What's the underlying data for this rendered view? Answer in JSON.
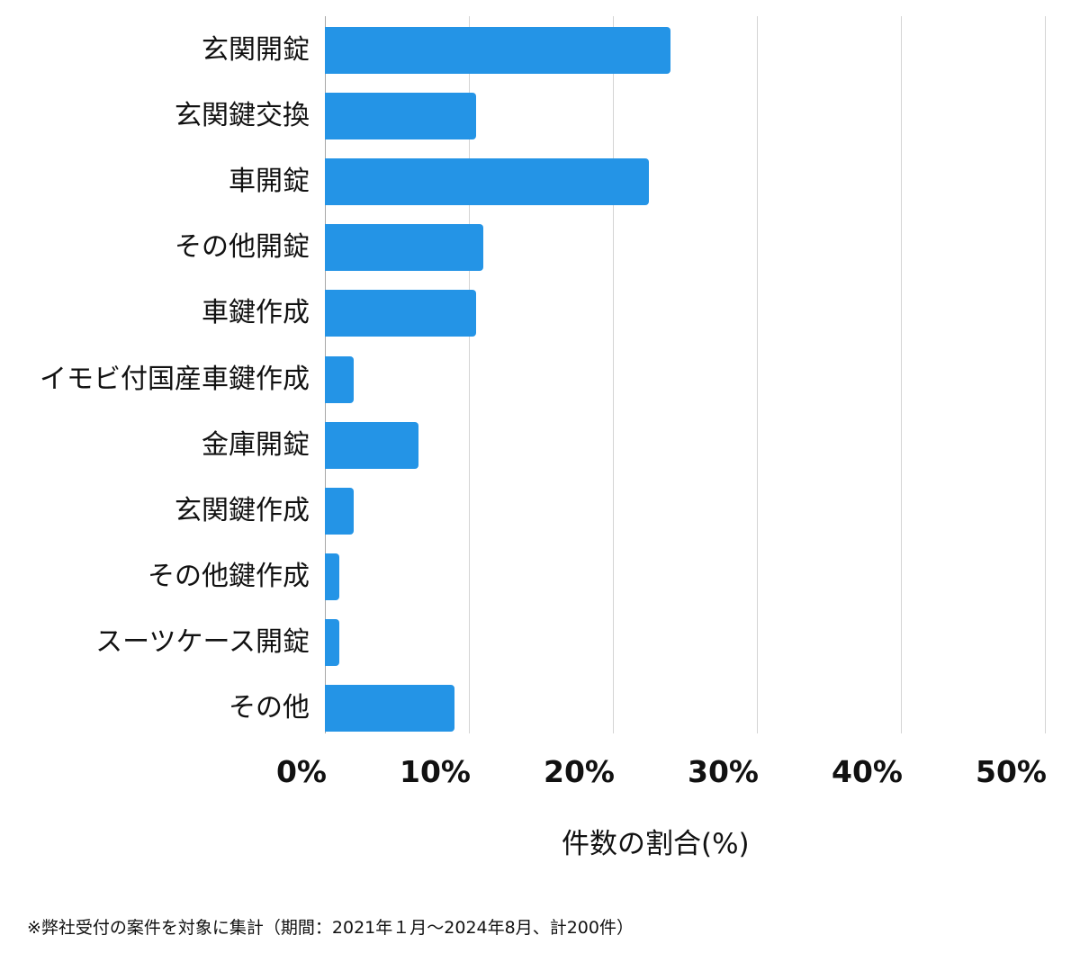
{
  "chart_data": {
    "type": "bar",
    "orientation": "horizontal",
    "title": "",
    "xlabel": "件数の割合(%)",
    "ylabel": "",
    "categories": [
      "玄関開錠",
      "玄関鍵交換",
      "車開錠",
      "その他開錠",
      "車鍵作成",
      "イモビ付国産車鍵作成",
      "金庫開錠",
      "玄関鍵作成",
      "その他鍵作成",
      "スーツケース開錠",
      "その他"
    ],
    "values": [
      24,
      10.5,
      22.5,
      11,
      10.5,
      2,
      6.5,
      2,
      1,
      1,
      9
    ],
    "unit": "%",
    "xlim": [
      0,
      50
    ],
    "xticks": [
      0,
      10,
      20,
      30,
      40,
      50
    ],
    "xtick_labels": [
      "0%",
      "10%",
      "20%",
      "30%",
      "40%",
      "50%"
    ],
    "grid": "vertical",
    "legend": null,
    "bar_color": "#2494e6",
    "footnote": "※弊社受付の案件を対象に集計（期間：2021年１月～2024年8月、計200件）"
  },
  "axis": {
    "x_title": "件数の割合(%)",
    "ticks": [
      "0%",
      "10%",
      "20%",
      "30%",
      "40%",
      "50%"
    ]
  },
  "categories": [
    {
      "label": "玄関開錠",
      "value": 24
    },
    {
      "label": "玄関鍵交換",
      "value": 10.5
    },
    {
      "label": "車開錠",
      "value": 22.5
    },
    {
      "label": "その他開錠",
      "value": 11
    },
    {
      "label": "車鍵作成",
      "value": 10.5
    },
    {
      "label": "イモビ付国産車鍵作成",
      "value": 2
    },
    {
      "label": "金庫開錠",
      "value": 6.5
    },
    {
      "label": "玄関鍵作成",
      "value": 2
    },
    {
      "label": "その他鍵作成",
      "value": 1
    },
    {
      "label": "スーツケース開錠",
      "value": 1
    },
    {
      "label": "その他",
      "value": 9
    }
  ],
  "footnote": "※弊社受付の案件を対象に集計（期間：2021年１月～2024年8月、計200件）"
}
